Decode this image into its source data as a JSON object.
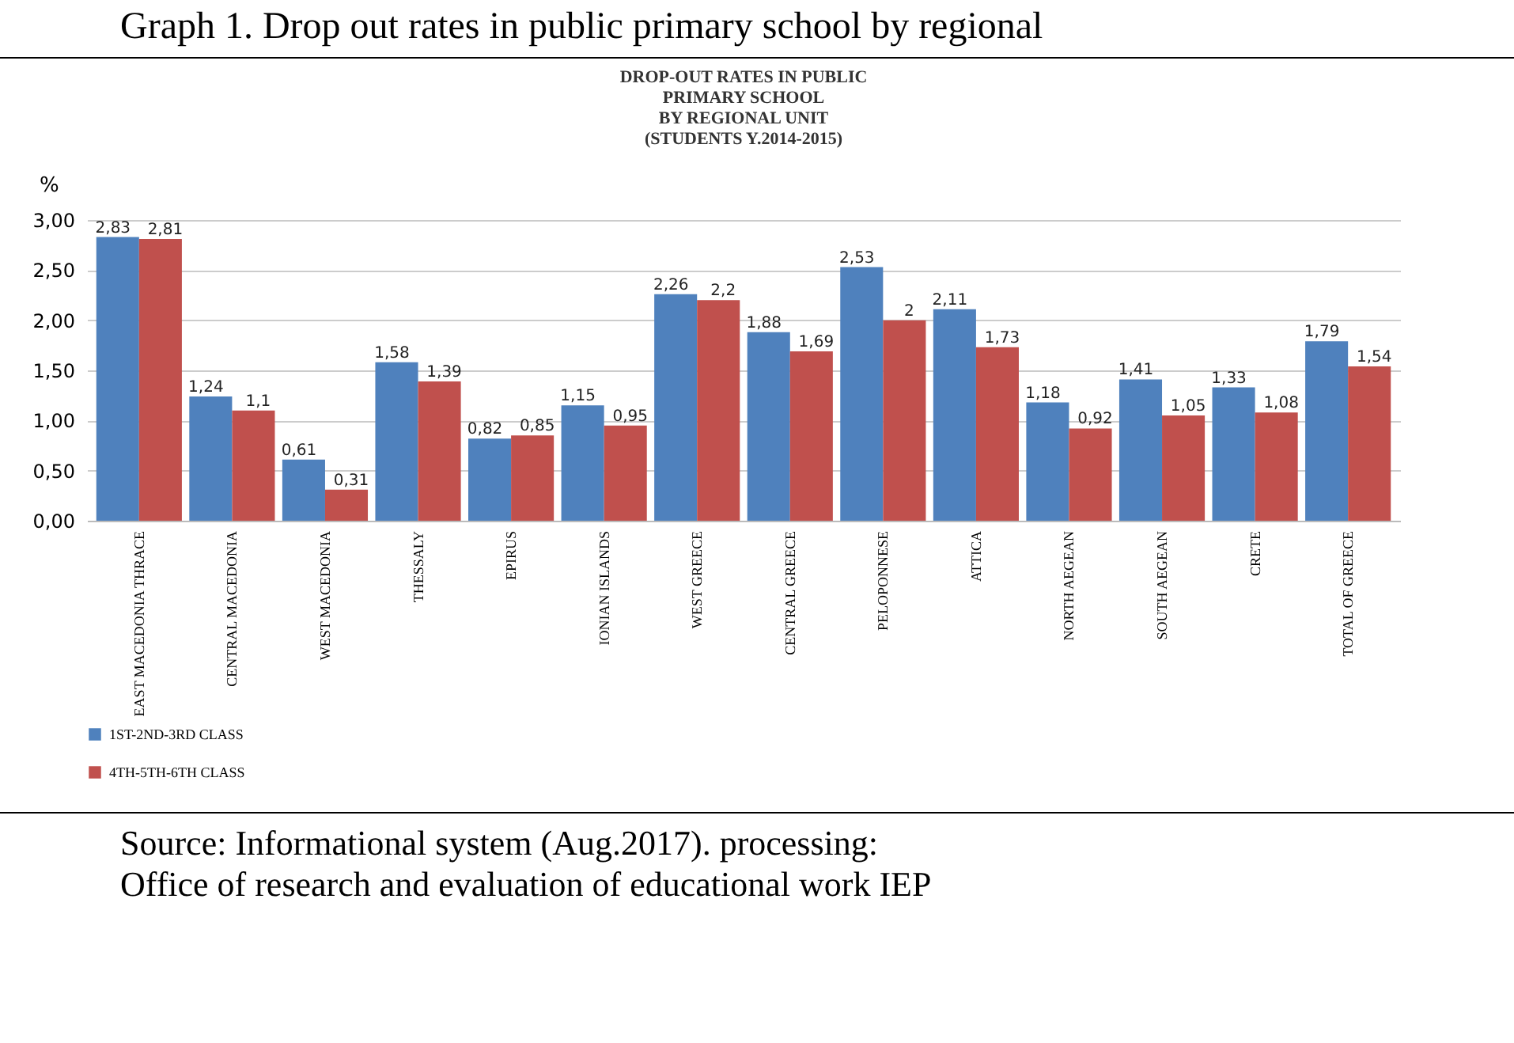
{
  "chart_data": {
    "type": "bar",
    "title": "Graph 1. Drop out rates in public primary school by regional",
    "subtitle": "DROP-OUT RATES IN PUBLIC\nPRIMARY SCHOOL\nBY REGIONAL UNIT\n(STUDENTS Y.2014-2015)",
    "ylabel": "%",
    "categories": [
      "EAST MACEDONIA THRACE",
      "CENTRAL MACEDONIA",
      "WEST MACEDONIA",
      "THESSALY",
      "EPIRUS",
      "IONIAN ISLANDS",
      "WEST GREECE",
      "CENTRAL GREECE",
      "PELOPONNESE",
      "ATTICA",
      "NORTH AEGEAN",
      "SOUTH AEGEAN",
      "CRETE",
      "TOTAL OF GREECE"
    ],
    "series": [
      {
        "name": "1ST-2ND-3RD CLASS",
        "color": "#4f81bd",
        "values": [
          2.83,
          1.24,
          0.61,
          1.58,
          0.82,
          1.15,
          2.26,
          1.88,
          2.53,
          2.11,
          1.18,
          1.41,
          1.33,
          1.79
        ],
        "value_labels": [
          "2,83",
          "1,24",
          "0,61",
          "1,58",
          "0,82",
          "1,15",
          "2,26",
          "1,88",
          "2,53",
          "2,11",
          "1,18",
          "1,41",
          "1,33",
          "1,79"
        ]
      },
      {
        "name": "4TH-5TH-6TH CLASS",
        "color": "#c0504d",
        "values": [
          2.81,
          1.1,
          0.31,
          1.39,
          0.85,
          0.95,
          2.2,
          1.69,
          2,
          1.73,
          0.92,
          1.05,
          1.08,
          1.54
        ],
        "value_labels": [
          "2,81",
          "1,1",
          "0,31",
          "1,39",
          "0,85",
          "0,95",
          "2,2",
          "1,69",
          "2",
          "1,73",
          "0,92",
          "1,05",
          "1,08",
          "1,54"
        ]
      }
    ],
    "ylim": [
      0,
      3
    ],
    "yticks": [
      {
        "value": 0,
        "label": "0,00"
      },
      {
        "value": 0.5,
        "label": "0,50"
      },
      {
        "value": 1,
        "label": "1,00"
      },
      {
        "value": 1.5,
        "label": "1,50"
      },
      {
        "value": 2,
        "label": "2,00"
      },
      {
        "value": 2.5,
        "label": "2,50"
      },
      {
        "value": 3,
        "label": "3,00"
      }
    ],
    "grid": "y",
    "legend": "bottom",
    "annotations": [
      "Source: Informational system (Aug.2017). processing:",
      "Office of research and evaluation of educational work IEP"
    ]
  }
}
